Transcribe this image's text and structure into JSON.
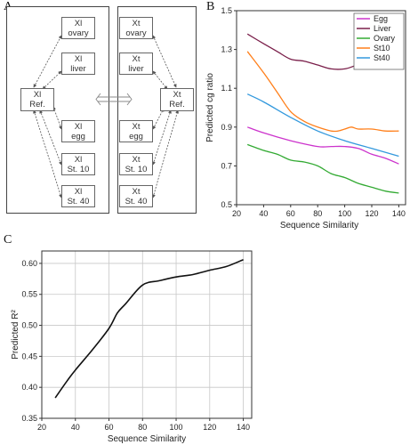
{
  "panels": {
    "a": "A",
    "b": "B",
    "c": "C"
  },
  "diagram": {
    "left": {
      "ref": [
        "Xl",
        "Ref."
      ],
      "targets": [
        [
          "Xl",
          "ovary"
        ],
        [
          "Xl",
          "liver"
        ],
        [
          "Xl",
          "egg"
        ],
        [
          "Xl",
          "St. 10"
        ],
        [
          "Xl",
          "St. 40"
        ]
      ]
    },
    "right": {
      "ref": [
        "Xt",
        "Ref."
      ],
      "targets": [
        [
          "Xt",
          "ovary"
        ],
        [
          "Xt",
          "liver"
        ],
        [
          "Xt",
          "egg"
        ],
        [
          "Xt",
          "St. 10"
        ],
        [
          "Xt",
          "St. 40"
        ]
      ]
    }
  },
  "colors": {
    "Egg": "#cc33cc",
    "Liver": "#7a1f4a",
    "Ovary": "#33aa33",
    "St10": "#ff7f1a",
    "St40": "#3399dd",
    "r2": "#111111"
  },
  "chart_data": [
    {
      "type": "line",
      "title": "",
      "xlabel": "Sequence Similarity",
      "ylabel": "Predicted cg ratio",
      "xlim": [
        20,
        145
      ],
      "ylim": [
        0.5,
        1.5
      ],
      "xticks": [
        "20",
        "40",
        "60",
        "80",
        "100",
        "120",
        "140"
      ],
      "yticks": [
        "0.5",
        "0.7",
        "0.9",
        "1.1",
        "1.3",
        "1.5"
      ],
      "grid": false,
      "legend_position": "top-right",
      "series": [
        {
          "name": "Egg",
          "x": [
            28,
            40,
            60,
            80,
            90,
            100,
            110,
            120,
            130,
            140
          ],
          "y": [
            0.9,
            0.87,
            0.83,
            0.8,
            0.8,
            0.8,
            0.79,
            0.76,
            0.74,
            0.71
          ]
        },
        {
          "name": "Liver",
          "x": [
            28,
            40,
            50,
            60,
            70,
            80,
            90,
            100,
            110,
            120,
            130,
            140
          ],
          "y": [
            1.38,
            1.33,
            1.29,
            1.25,
            1.24,
            1.22,
            1.2,
            1.2,
            1.22,
            1.22,
            1.22,
            1.21
          ]
        },
        {
          "name": "Ovary",
          "x": [
            28,
            40,
            50,
            60,
            70,
            80,
            90,
            100,
            110,
            120,
            130,
            140
          ],
          "y": [
            0.81,
            0.78,
            0.76,
            0.73,
            0.72,
            0.7,
            0.66,
            0.64,
            0.61,
            0.59,
            0.57,
            0.56
          ]
        },
        {
          "name": "St10",
          "x": [
            28,
            40,
            50,
            60,
            70,
            80,
            90,
            95,
            100,
            105,
            110,
            120,
            130,
            140
          ],
          "y": [
            1.29,
            1.18,
            1.08,
            0.98,
            0.93,
            0.9,
            0.88,
            0.88,
            0.89,
            0.9,
            0.89,
            0.89,
            0.88,
            0.88
          ]
        },
        {
          "name": "St40",
          "x": [
            28,
            40,
            60,
            80,
            100,
            120,
            140
          ],
          "y": [
            1.07,
            1.03,
            0.95,
            0.88,
            0.83,
            0.79,
            0.75
          ]
        }
      ]
    },
    {
      "type": "line",
      "title": "",
      "xlabel": "Sequence Similarity",
      "ylabel": "Predicted R²",
      "xlim": [
        20,
        145
      ],
      "ylim": [
        0.35,
        0.62
      ],
      "xticks": [
        "20",
        "40",
        "60",
        "80",
        "100",
        "120",
        "140"
      ],
      "yticks": [
        "0.35",
        "0.40",
        "0.45",
        "0.50",
        "0.55",
        "0.60"
      ],
      "grid": true,
      "series": [
        {
          "name": "",
          "x": [
            28,
            35,
            40,
            50,
            60,
            65,
            70,
            80,
            90,
            100,
            110,
            120,
            130,
            140
          ],
          "y": [
            0.383,
            0.41,
            0.428,
            0.46,
            0.495,
            0.52,
            0.535,
            0.565,
            0.572,
            0.578,
            0.582,
            0.589,
            0.595,
            0.606
          ]
        }
      ]
    }
  ]
}
